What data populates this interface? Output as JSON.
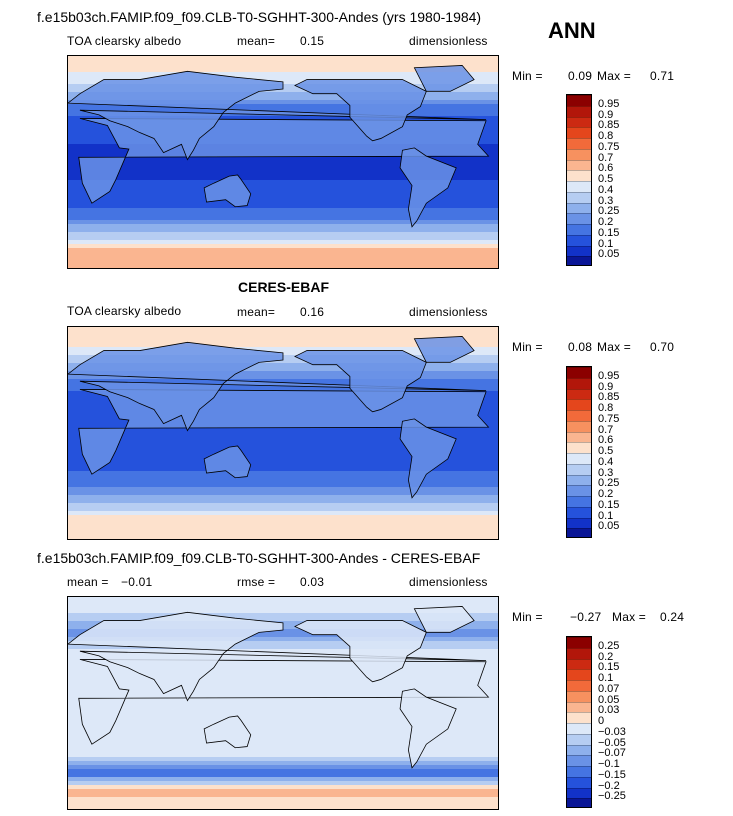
{
  "season": "ANN",
  "panels": [
    {
      "header": "f.e15b03ch.FAMIP.f09_f09.CLB-T0-SGHHT-300-Andes (yrs 1980-1984)",
      "variable": "TOA clearsky albedo",
      "stat1_label": "mean=",
      "stat1_value": "0.15",
      "stat2_label": "",
      "stat2_value": "",
      "units": "dimensionless",
      "min_label": "Min =",
      "min_value": "0.09",
      "max_label": "Max =",
      "max_value": "0.71"
    },
    {
      "header": "CERES-EBAF",
      "variable": "TOA clearsky albedo",
      "stat1_label": "mean=",
      "stat1_value": "0.16",
      "stat2_label": "",
      "stat2_value": "",
      "units": "dimensionless",
      "min_label": "Min =",
      "min_value": "0.08",
      "max_label": "Max =",
      "max_value": "0.70"
    },
    {
      "header": "f.e15b03ch.FAMIP.f09_f09.CLB-T0-SGHHT-300-Andes - CERES-EBAF",
      "variable": "",
      "stat1_label": "mean =",
      "stat1_value": "−0.01",
      "stat2_label": "rmse =",
      "stat2_value": "0.03",
      "units": "dimensionless",
      "min_label": "Min =",
      "min_value": "−0.27",
      "max_label": "Max =",
      "max_value": "0.24"
    }
  ],
  "colorbars": {
    "albedo": {
      "labels": [
        "0.95",
        "0.9",
        "0.85",
        "0.8",
        "0.75",
        "0.7",
        "0.6",
        "0.5",
        "0.4",
        "0.3",
        "0.25",
        "0.2",
        "0.15",
        "0.1",
        "0.05"
      ],
      "colors": [
        "#8b0000",
        "#b2160a",
        "#cc2a12",
        "#e4461c",
        "#f26a3a",
        "#f7915f",
        "#fab590",
        "#fde1cc",
        "#dde8f8",
        "#b6cdf2",
        "#8eb0ec",
        "#6a92e6",
        "#4574e2",
        "#2552dc",
        "#1232c8",
        "#0a1696"
      ]
    },
    "difference": {
      "labels": [
        "0.25",
        "0.2",
        "0.15",
        "0.1",
        "0.07",
        "0.05",
        "0.03",
        "0",
        "−0.03",
        "−0.05",
        "−0.07",
        "−0.1",
        "−0.15",
        "−0.2",
        "−0.25"
      ],
      "colors": [
        "#8b0000",
        "#b2160a",
        "#cc2a12",
        "#e4461c",
        "#f26a3a",
        "#f7915f",
        "#fab590",
        "#fde1cc",
        "#dde8f8",
        "#b6cdf2",
        "#8eb0ec",
        "#6a92e6",
        "#4574e2",
        "#2552dc",
        "#1232c8",
        "#0a1696"
      ]
    }
  },
  "chart_data": [
    {
      "type": "heatmap",
      "title": "f.e15b03ch.FAMIP.f09_f09.CLB-T0-SGHHT-300-Andes (yrs 1980-1984)",
      "variable": "TOA clearsky albedo",
      "units": "dimensionless",
      "mean": 0.15,
      "min": 0.09,
      "max": 0.71,
      "levels": [
        0.05,
        0.1,
        0.15,
        0.2,
        0.25,
        0.3,
        0.4,
        0.5,
        0.6,
        0.7,
        0.75,
        0.8,
        0.85,
        0.9,
        0.95
      ],
      "projection": "global cylindrical, Pacific-centered",
      "zonal_pattern": {
        "latitude": [
          -90,
          -75,
          -60,
          -45,
          -30,
          -15,
          0,
          15,
          30,
          45,
          60,
          75,
          90
        ],
        "ocean_albedo": [
          0.65,
          0.62,
          0.3,
          0.17,
          0.13,
          0.1,
          0.09,
          0.1,
          0.12,
          0.17,
          0.3,
          0.5,
          0.6
        ]
      }
    },
    {
      "type": "heatmap",
      "title": "CERES-EBAF",
      "variable": "TOA clearsky albedo",
      "units": "dimensionless",
      "mean": 0.16,
      "min": 0.08,
      "max": 0.7,
      "levels": [
        0.05,
        0.1,
        0.15,
        0.2,
        0.25,
        0.3,
        0.4,
        0.5,
        0.6,
        0.7,
        0.75,
        0.8,
        0.85,
        0.9,
        0.95
      ],
      "projection": "global cylindrical, Pacific-centered",
      "zonal_pattern": {
        "latitude": [
          -90,
          -75,
          -60,
          -45,
          -30,
          -15,
          0,
          15,
          30,
          45,
          60,
          75,
          90
        ],
        "ocean_albedo": [
          0.6,
          0.58,
          0.32,
          0.18,
          0.14,
          0.11,
          0.1,
          0.11,
          0.13,
          0.18,
          0.32,
          0.52,
          0.58
        ]
      }
    },
    {
      "type": "heatmap",
      "title": "f.e15b03ch.FAMIP.f09_f09.CLB-T0-SGHHT-300-Andes - CERES-EBAF",
      "units": "dimensionless",
      "mean": -0.01,
      "rmse": 0.03,
      "min": -0.27,
      "max": 0.24,
      "levels": [
        -0.25,
        -0.2,
        -0.15,
        -0.1,
        -0.07,
        -0.05,
        -0.03,
        0,
        0.03,
        0.05,
        0.07,
        0.1,
        0.15,
        0.2,
        0.25
      ],
      "zonal_pattern": {
        "latitude": [
          -90,
          -75,
          -60,
          -45,
          -30,
          -15,
          0,
          15,
          30,
          45,
          60,
          75,
          90
        ],
        "difference": [
          0.0,
          0.05,
          -0.12,
          -0.02,
          0.0,
          -0.01,
          -0.01,
          -0.01,
          0.0,
          -0.02,
          -0.08,
          -0.03,
          0.0
        ]
      }
    }
  ]
}
